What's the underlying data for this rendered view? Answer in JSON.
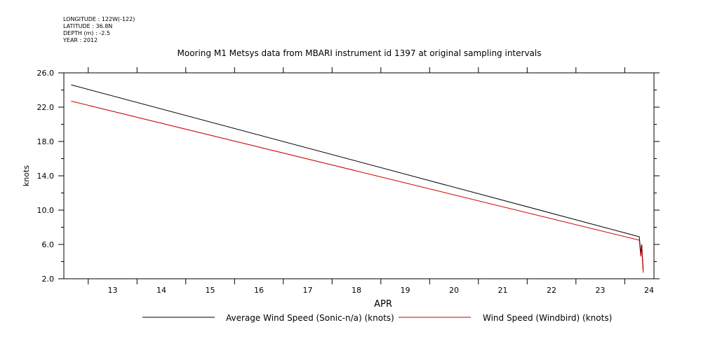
{
  "header": {
    "longitude": "LONGITUDE : 122W(-122)",
    "latitude": "LATITUDE : 36.8N",
    "depth": "DEPTH (m) : -2.5",
    "year": "YEAR : 2012"
  },
  "chart_data": {
    "type": "line",
    "title": "Mooring M1 Metsys data from MBARI instrument id 1397 at original sampling intervals",
    "xlabel": "APR",
    "ylabel": "knots",
    "xlim": [
      12.5,
      24.6
    ],
    "ylim": [
      2.0,
      26.0
    ],
    "xticks": [
      13,
      14,
      15,
      16,
      17,
      18,
      19,
      20,
      21,
      22,
      23,
      24
    ],
    "yticks": [
      2.0,
      6.0,
      10.0,
      14.0,
      18.0,
      22.0,
      26.0
    ],
    "ytick_labels": [
      "2.0",
      "6.0",
      "10.0",
      "14.0",
      "18.0",
      "22.0",
      "26.0"
    ],
    "grid": false,
    "legend_position": "bottom",
    "series": [
      {
        "name": "Average Wind Speed (Sonic-n/a) (knots)",
        "color": "#000000",
        "x": [
          12.65,
          24.3,
          24.33,
          24.35,
          24.37,
          24.38
        ],
        "y": [
          24.6,
          6.9,
          5.0,
          6.0,
          4.0,
          3.0
        ]
      },
      {
        "name": "Wind Speed (Windbird) (knots)",
        "color": "#cc0000",
        "x": [
          12.65,
          24.3,
          24.33,
          24.35,
          24.37,
          24.38
        ],
        "y": [
          22.7,
          6.5,
          4.6,
          5.6,
          3.5,
          2.7
        ]
      }
    ]
  }
}
